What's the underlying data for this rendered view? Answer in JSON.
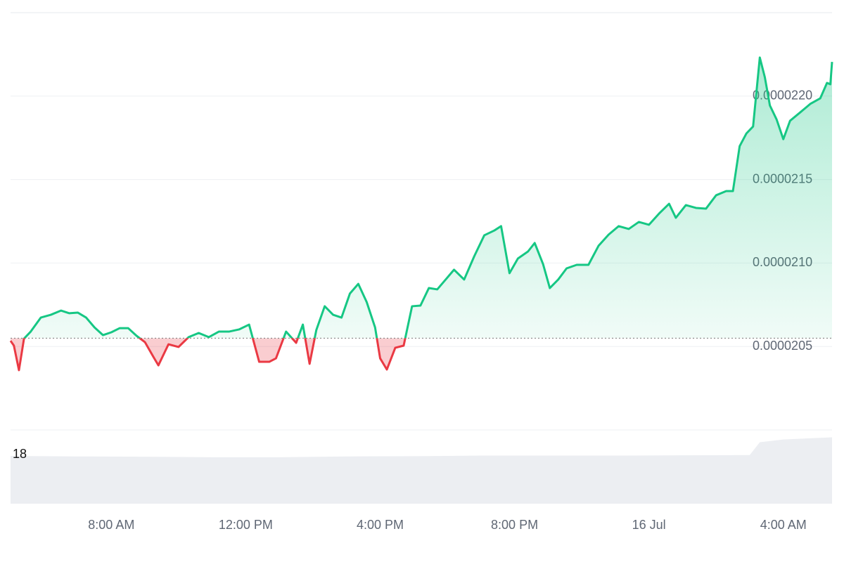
{
  "chart_data": {
    "type": "line",
    "x": [
      5.0,
      5.1,
      5.25,
      5.4,
      5.6,
      5.9,
      6.2,
      6.5,
      6.75,
      7.0,
      7.25,
      7.5,
      7.75,
      8.0,
      8.25,
      8.5,
      8.75,
      9.0,
      9.25,
      9.4,
      9.7,
      10.0,
      10.3,
      10.6,
      10.9,
      11.2,
      11.5,
      11.8,
      12.1,
      12.4,
      12.7,
      12.9,
      13.2,
      13.5,
      13.7,
      13.9,
      14.1,
      14.35,
      14.6,
      14.85,
      15.1,
      15.35,
      15.6,
      15.85,
      16.0,
      16.2,
      16.45,
      16.7,
      16.95,
      17.2,
      17.45,
      17.7,
      17.95,
      18.2,
      18.5,
      18.8,
      19.1,
      19.4,
      19.6,
      19.85,
      20.1,
      20.4,
      20.6,
      20.85,
      21.05,
      21.3,
      21.55,
      21.85,
      22.2,
      22.5,
      22.8,
      23.1,
      23.4,
      23.7,
      24.0,
      24.3,
      24.6,
      24.8,
      25.1,
      25.4,
      25.7,
      26.0,
      26.3,
      26.5,
      26.7,
      26.9,
      27.1,
      27.3,
      27.45,
      27.6,
      27.8,
      28.0,
      28.2,
      28.5,
      28.8,
      29.1,
      29.3,
      29.4,
      29.45
    ],
    "values": [
      2.0534e-05,
      2.0505e-05,
      2.0358e-05,
      2.0547e-05,
      2.0589e-05,
      2.0673e-05,
      2.069e-05,
      2.0715e-05,
      2.0699e-05,
      2.0703e-05,
      2.0673e-05,
      2.0614e-05,
      2.0568e-05,
      2.0585e-05,
      2.061e-05,
      2.061e-05,
      2.0564e-05,
      2.0526e-05,
      2.0438e-05,
      2.0387e-05,
      2.0513e-05,
      2.0497e-05,
      2.0556e-05,
      2.0581e-05,
      2.0556e-05,
      2.0589e-05,
      2.0589e-05,
      2.0602e-05,
      2.0631e-05,
      2.0408e-05,
      2.0408e-05,
      2.0429e-05,
      2.0589e-05,
      2.0522e-05,
      2.0631e-05,
      2.0396e-05,
      2.0598e-05,
      2.0741e-05,
      2.069e-05,
      2.0673e-05,
      2.0817e-05,
      2.0875e-05,
      2.0766e-05,
      2.0614e-05,
      2.0429e-05,
      2.0362e-05,
      2.0492e-05,
      2.0505e-05,
      2.0741e-05,
      2.0745e-05,
      2.085e-05,
      2.0842e-05,
      2.0901e-05,
      2.096e-05,
      2.0901e-05,
      2.104e-05,
      2.1166e-05,
      2.1195e-05,
      2.1221e-05,
      2.0939e-05,
      2.1027e-05,
      2.1069e-05,
      2.112e-05,
      2.0993e-05,
      2.085e-05,
      2.0901e-05,
      2.0968e-05,
      2.0989e-05,
      2.0989e-05,
      2.1103e-05,
      2.117e-05,
      2.1221e-05,
      2.1204e-05,
      2.1246e-05,
      2.1229e-05,
      2.1296e-05,
      2.1355e-05,
      2.1271e-05,
      2.1347e-05,
      2.133e-05,
      2.1326e-05,
      2.1406e-05,
      2.1431e-05,
      2.1431e-05,
      2.17e-05,
      2.1776e-05,
      2.1818e-05,
      2.2231e-05,
      2.2113e-05,
      2.1944e-05,
      2.186e-05,
      2.1742e-05,
      2.1852e-05,
      2.1902e-05,
      2.1953e-05,
      2.1987e-05,
      2.2079e-05,
      2.2071e-05,
      2.2205e-05
    ],
    "color_up": "#16c784",
    "color_down": "#ea3943",
    "reference_value": 2.055e-05,
    "xlim": [
      5,
      29.45
    ],
    "xticks": [
      {
        "value": 8,
        "label": "8:00 AM"
      },
      {
        "value": 12,
        "label": "12:00 PM"
      },
      {
        "value": 16,
        "label": "4:00 PM"
      },
      {
        "value": 20,
        "label": "8:00 PM"
      },
      {
        "value": 24,
        "label": "16 Jul"
      },
      {
        "value": 28,
        "label": "4:00 AM"
      }
    ],
    "ylim": [
      2e-05,
      2.25e-05
    ],
    "yticks": [
      2.05e-05,
      {
        "value": 2.1e-05,
        "label": "0.0000210"
      },
      2.15e-05,
      {
        "value": 2.2e-05,
        "label": "0.0000220"
      }
    ],
    "grid": true,
    "volume": {
      "x": [
        5,
        7,
        9,
        11,
        13,
        15,
        17,
        19,
        21,
        23,
        25,
        27,
        27.3,
        28,
        29.45
      ],
      "values": [
        17.5,
        17.3,
        17.2,
        17.0,
        17.0,
        17.3,
        17.4,
        17.6,
        17.6,
        17.6,
        17.7,
        17.8,
        22.5,
        23.5,
        24.3
      ],
      "ylim": [
        0,
        27
      ],
      "yticks": [
        18
      ],
      "color": "#eceef2"
    }
  }
}
